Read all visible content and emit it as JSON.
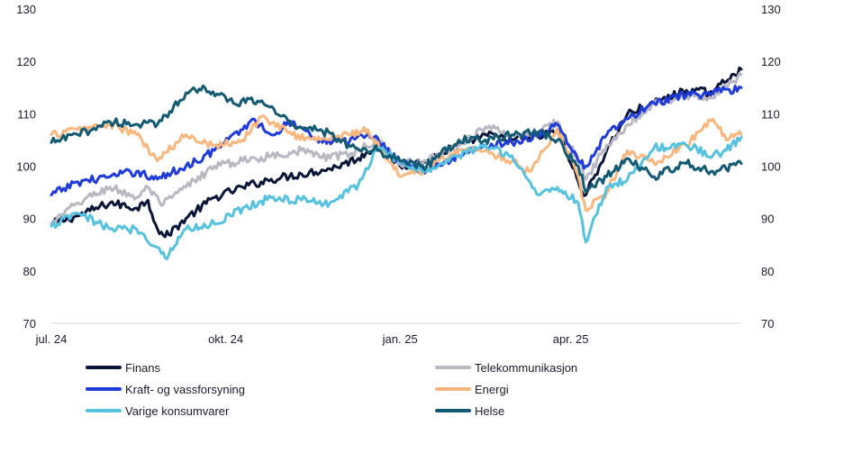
{
  "chart_data": {
    "type": "line",
    "title": "",
    "xlabel": "",
    "ylabel": "",
    "ylim": [
      70,
      130
    ],
    "yticks": [
      70,
      80,
      90,
      100,
      110,
      120,
      130
    ],
    "ytick_labels": [
      "70",
      "80",
      "90",
      "100",
      "110",
      "120",
      "130"
    ],
    "x_range": [
      "2024-07-01",
      "2025-06-30"
    ],
    "xticks": [
      "2024-07-01",
      "2024-10-01",
      "2025-01-01",
      "2025-04-01"
    ],
    "xtick_labels": [
      "jul. 24",
      "okt. 24",
      "jan. 25",
      "apr. 25"
    ],
    "grid": false,
    "legend_position": "bottom",
    "series": [
      {
        "name": "Finans",
        "color": "#0b1538",
        "points": [
          [
            "2024-07-01",
            89
          ],
          [
            "2024-07-15",
            90.5
          ],
          [
            "2024-08-01",
            93
          ],
          [
            "2024-08-15",
            92
          ],
          [
            "2024-08-21",
            93.5
          ],
          [
            "2024-08-26",
            88
          ],
          [
            "2024-08-30",
            86.5
          ],
          [
            "2024-09-10",
            90
          ],
          [
            "2024-09-25",
            94
          ],
          [
            "2024-10-10",
            96
          ],
          [
            "2024-10-25",
            97.5
          ],
          [
            "2024-11-10",
            98.5
          ],
          [
            "2024-11-25",
            99.5
          ],
          [
            "2024-12-10",
            101.5
          ],
          [
            "2024-12-20",
            104
          ],
          [
            "2025-01-01",
            100
          ],
          [
            "2025-01-15",
            101
          ],
          [
            "2025-02-01",
            104
          ],
          [
            "2025-02-15",
            106
          ],
          [
            "2025-03-01",
            105
          ],
          [
            "2025-03-15",
            105.5
          ],
          [
            "2025-03-25",
            107
          ],
          [
            "2025-04-05",
            97
          ],
          [
            "2025-04-09",
            94.5
          ],
          [
            "2025-04-20",
            103
          ],
          [
            "2025-05-01",
            110
          ],
          [
            "2025-05-15",
            112
          ],
          [
            "2025-06-01",
            114.5
          ],
          [
            "2025-06-15",
            114
          ],
          [
            "2025-06-25",
            117.5
          ],
          [
            "2025-06-30",
            118.5
          ]
        ]
      },
      {
        "name": "Telekommunikasjon",
        "color": "#b8b8c2",
        "points": [
          [
            "2024-07-01",
            89
          ],
          [
            "2024-07-15",
            93
          ],
          [
            "2024-08-01",
            96
          ],
          [
            "2024-08-15",
            94
          ],
          [
            "2024-08-21",
            96
          ],
          [
            "2024-08-28",
            92.5
          ],
          [
            "2024-09-10",
            96
          ],
          [
            "2024-09-25",
            100
          ],
          [
            "2024-10-10",
            101
          ],
          [
            "2024-10-25",
            102
          ],
          [
            "2024-11-10",
            103
          ],
          [
            "2024-11-25",
            101.5
          ],
          [
            "2024-12-10",
            103
          ],
          [
            "2024-12-20",
            105
          ],
          [
            "2025-01-01",
            100.5
          ],
          [
            "2025-01-15",
            101
          ],
          [
            "2025-02-01",
            104
          ],
          [
            "2025-02-15",
            107.5
          ],
          [
            "2025-03-01",
            106
          ],
          [
            "2025-03-15",
            106.5
          ],
          [
            "2025-03-25",
            108.5
          ],
          [
            "2025-04-05",
            101
          ],
          [
            "2025-04-09",
            97.5
          ],
          [
            "2025-04-20",
            104
          ],
          [
            "2025-05-01",
            108
          ],
          [
            "2025-05-15",
            112
          ],
          [
            "2025-06-01",
            113.5
          ],
          [
            "2025-06-15",
            113
          ],
          [
            "2025-06-25",
            116
          ],
          [
            "2025-06-30",
            117.5
          ]
        ]
      },
      {
        "name": "Kraft- og vassforsyning",
        "color": "#1f3bdb",
        "points": [
          [
            "2024-07-01",
            94.5
          ],
          [
            "2024-07-15",
            97
          ],
          [
            "2024-08-01",
            98
          ],
          [
            "2024-08-15",
            99
          ],
          [
            "2024-08-26",
            97.5
          ],
          [
            "2024-09-10",
            100
          ],
          [
            "2024-09-25",
            103
          ],
          [
            "2024-10-10",
            107
          ],
          [
            "2024-10-15",
            109
          ],
          [
            "2024-10-25",
            106
          ],
          [
            "2024-11-05",
            108.5
          ],
          [
            "2024-11-20",
            105
          ],
          [
            "2024-12-05",
            104.5
          ],
          [
            "2024-12-15",
            106.5
          ],
          [
            "2025-01-01",
            101
          ],
          [
            "2025-01-15",
            99
          ],
          [
            "2025-02-01",
            102
          ],
          [
            "2025-02-15",
            104
          ],
          [
            "2025-03-01",
            104.5
          ],
          [
            "2025-03-15",
            106
          ],
          [
            "2025-03-25",
            108
          ],
          [
            "2025-04-05",
            101
          ],
          [
            "2025-04-09",
            100
          ],
          [
            "2025-04-20",
            106
          ],
          [
            "2025-05-01",
            109
          ],
          [
            "2025-05-15",
            112
          ],
          [
            "2025-06-01",
            113.5
          ],
          [
            "2025-06-15",
            114
          ],
          [
            "2025-06-30",
            115
          ]
        ]
      },
      {
        "name": "Energi",
        "color": "#f9b77d",
        "points": [
          [
            "2024-07-01",
            106
          ],
          [
            "2024-07-15",
            107
          ],
          [
            "2024-08-01",
            108
          ],
          [
            "2024-08-15",
            106
          ],
          [
            "2024-08-26",
            101
          ],
          [
            "2024-09-10",
            106
          ],
          [
            "2024-09-25",
            104
          ],
          [
            "2024-10-10",
            105
          ],
          [
            "2024-10-20",
            109.5
          ],
          [
            "2024-11-05",
            106
          ],
          [
            "2024-11-20",
            105
          ],
          [
            "2024-12-05",
            106
          ],
          [
            "2024-12-15",
            107
          ],
          [
            "2025-01-01",
            98
          ],
          [
            "2025-01-15",
            99.5
          ],
          [
            "2025-02-01",
            103
          ],
          [
            "2025-02-15",
            103
          ],
          [
            "2025-03-01",
            101
          ],
          [
            "2025-03-10",
            99
          ],
          [
            "2025-03-25",
            107
          ],
          [
            "2025-04-05",
            98
          ],
          [
            "2025-04-09",
            91.5
          ],
          [
            "2025-04-20",
            95
          ],
          [
            "2025-05-01",
            103
          ],
          [
            "2025-05-15",
            100.5
          ],
          [
            "2025-06-01",
            104
          ],
          [
            "2025-06-15",
            109
          ],
          [
            "2025-06-22",
            105
          ],
          [
            "2025-06-30",
            106
          ]
        ]
      },
      {
        "name": "Varige konsumvarer",
        "color": "#55c2e0",
        "points": [
          [
            "2024-07-01",
            88.5
          ],
          [
            "2024-07-15",
            91
          ],
          [
            "2024-08-01",
            88
          ],
          [
            "2024-08-15",
            88
          ],
          [
            "2024-08-26",
            84.5
          ],
          [
            "2024-08-30",
            82.5
          ],
          [
            "2024-09-10",
            88
          ],
          [
            "2024-09-25",
            89
          ],
          [
            "2024-10-10",
            92
          ],
          [
            "2024-10-25",
            94
          ],
          [
            "2024-11-10",
            93.5
          ],
          [
            "2024-11-25",
            93
          ],
          [
            "2024-12-10",
            96.5
          ],
          [
            "2024-12-20",
            103.5
          ],
          [
            "2025-01-01",
            100.5
          ],
          [
            "2025-01-15",
            99
          ],
          [
            "2025-02-01",
            102
          ],
          [
            "2025-02-15",
            104
          ],
          [
            "2025-03-01",
            102
          ],
          [
            "2025-03-15",
            94.5
          ],
          [
            "2025-03-25",
            96
          ],
          [
            "2025-04-05",
            93
          ],
          [
            "2025-04-09",
            85.5
          ],
          [
            "2025-04-20",
            96
          ],
          [
            "2025-05-01",
            97.5
          ],
          [
            "2025-05-15",
            103.5
          ],
          [
            "2025-06-01",
            104
          ],
          [
            "2025-06-15",
            102
          ],
          [
            "2025-06-22",
            103
          ],
          [
            "2025-06-30",
            105.5
          ]
        ]
      },
      {
        "name": "Helse",
        "color": "#135a74",
        "points": [
          [
            "2024-07-01",
            104.5
          ],
          [
            "2024-07-15",
            106
          ],
          [
            "2024-08-01",
            108.5
          ],
          [
            "2024-08-15",
            108
          ],
          [
            "2024-08-26",
            108
          ],
          [
            "2024-09-10",
            114
          ],
          [
            "2024-09-20",
            115
          ],
          [
            "2024-10-05",
            112
          ],
          [
            "2024-10-20",
            112.5
          ],
          [
            "2024-11-05",
            108
          ],
          [
            "2024-11-20",
            107
          ],
          [
            "2024-12-05",
            104
          ],
          [
            "2024-12-20",
            103
          ],
          [
            "2025-01-01",
            101
          ],
          [
            "2025-01-15",
            100
          ],
          [
            "2025-02-01",
            105
          ],
          [
            "2025-02-15",
            105
          ],
          [
            "2025-03-01",
            106
          ],
          [
            "2025-03-15",
            106.5
          ],
          [
            "2025-03-25",
            105
          ],
          [
            "2025-04-05",
            100
          ],
          [
            "2025-04-09",
            95
          ],
          [
            "2025-04-20",
            98
          ],
          [
            "2025-05-01",
            101.5
          ],
          [
            "2025-05-15",
            98
          ],
          [
            "2025-06-01",
            100.5
          ],
          [
            "2025-06-15",
            99
          ],
          [
            "2025-06-22",
            99.5
          ],
          [
            "2025-06-30",
            100.5
          ]
        ]
      }
    ]
  }
}
